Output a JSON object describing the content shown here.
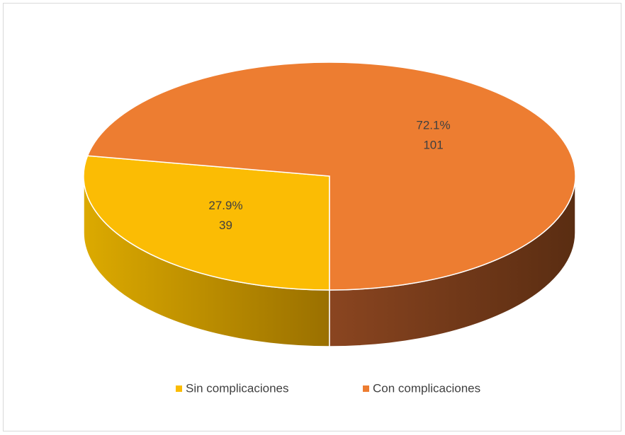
{
  "chart_data": {
    "type": "pie",
    "categories": [
      "Sin complicaciones",
      "Con complicaciones"
    ],
    "values": [
      39,
      101
    ],
    "percent": [
      27.9,
      72.1
    ],
    "percent_labels": [
      "27.9%",
      "72.1%"
    ],
    "colors": [
      "#fbbc04",
      "#ed7d31"
    ],
    "legend": "bottom"
  }
}
